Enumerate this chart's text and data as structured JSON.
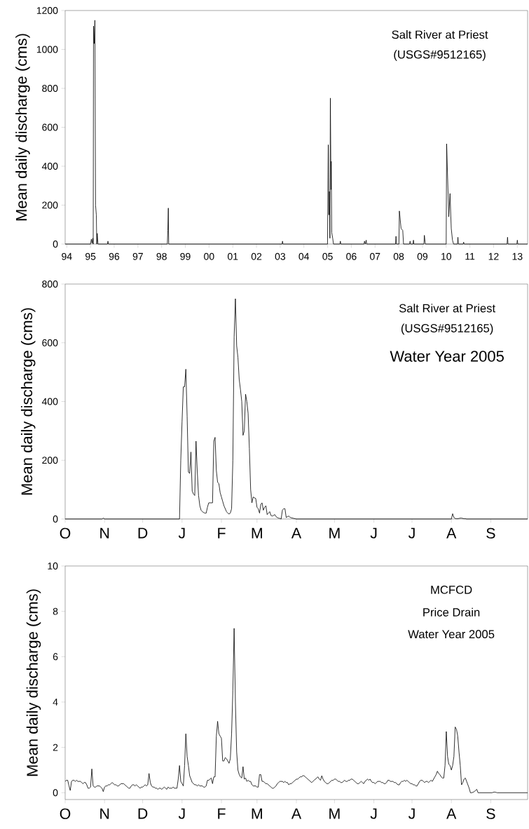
{
  "chart_data": [
    {
      "type": "line",
      "ylabel": "Mean daily discharge (cms)",
      "annotations": [
        "Salt River at Priest",
        "(USGS#9512165)"
      ],
      "color": "#000000",
      "x": [
        "1993-12-07",
        "1995-01-01",
        "1995-01-15",
        "1995-01-25",
        "1995-02-06",
        "1995-02-12",
        "1995-02-17",
        "1995-03-01",
        "1995-03-10",
        "1995-03-20",
        "1995-04-01",
        "1995-04-08",
        "1995-04-15",
        "1995-04-27",
        "1995-09-20",
        "1995-09-27",
        "1995-10-04",
        "1998-03-30",
        "1998-04-06",
        "1998-04-14",
        "1998-04-20",
        "2003-01-30",
        "2003-02-06",
        "2003-02-13",
        "2004-12-30",
        "2005-01-11",
        "2005-01-20",
        "2005-01-27",
        "2005-02-05",
        "2005-02-12",
        "2005-02-22",
        "2005-02-25",
        "2005-03-05",
        "2005-03-20",
        "2005-04-01",
        "2005-07-09",
        "2005-07-16",
        "2005-07-23",
        "2006-07-16",
        "2006-07-23",
        "2006-08-05",
        "2006-08-18",
        "2006-08-25",
        "2007-11-13",
        "2007-11-20",
        "2007-11-27",
        "2008-01-04",
        "2008-01-11",
        "2008-02-06",
        "2008-03-03",
        "2008-03-15",
        "2008-06-17",
        "2008-06-24",
        "2008-07-01",
        "2008-08-08",
        "2008-08-15",
        "2008-08-22",
        "2009-01-23",
        "2009-01-30",
        "2009-02-14",
        "2010-01-01",
        "2010-01-08",
        "2010-02-10",
        "2010-03-01",
        "2010-03-20",
        "2010-04-08",
        "2010-04-25",
        "2010-06-24",
        "2010-07-01",
        "2010-07-08",
        "2010-09-20",
        "2010-09-27",
        "2010-10-04",
        "2012-07-27",
        "2012-08-03",
        "2012-08-10",
        "2012-12-25",
        "2013-01-01",
        "2013-01-08",
        "2013-06-08"
      ],
      "values": [
        0,
        0,
        25,
        5,
        30,
        0,
        1120,
        1030,
        1150,
        200,
        150,
        0,
        55,
        0,
        0,
        15,
        0,
        0,
        70,
        185,
        0,
        0,
        15,
        0,
        0,
        510,
        150,
        270,
        30,
        750,
        280,
        425,
        60,
        30,
        0,
        0,
        15,
        0,
        0,
        15,
        0,
        20,
        0,
        0,
        40,
        0,
        0,
        170,
        80,
        70,
        0,
        0,
        15,
        0,
        0,
        20,
        0,
        0,
        45,
        0,
        0,
        515,
        140,
        260,
        80,
        20,
        0,
        0,
        35,
        0,
        0,
        10,
        0,
        0,
        35,
        0,
        0,
        20,
        0,
        0
      ],
      "xlim": [
        "1993-12-07",
        "2013-06-08"
      ],
      "ylim": [
        0,
        1200
      ],
      "yticks": [
        0,
        200,
        400,
        600,
        800,
        1000,
        1200
      ],
      "xticks": [
        {
          "value": "1994-01-01",
          "label": "94"
        },
        {
          "value": "1995-01-01",
          "label": "95"
        },
        {
          "value": "1996-01-01",
          "label": "96"
        },
        {
          "value": "1997-01-01",
          "label": "97"
        },
        {
          "value": "1998-01-01",
          "label": "98"
        },
        {
          "value": "1999-01-01",
          "label": "99"
        },
        {
          "value": "2000-01-01",
          "label": "00"
        },
        {
          "value": "2001-01-01",
          "label": "01"
        },
        {
          "value": "2002-01-01",
          "label": "02"
        },
        {
          "value": "2003-01-01",
          "label": "03"
        },
        {
          "value": "2004-01-01",
          "label": "04"
        },
        {
          "value": "2005-01-01",
          "label": "05"
        },
        {
          "value": "2006-01-01",
          "label": "06"
        },
        {
          "value": "2007-01-01",
          "label": "07"
        },
        {
          "value": "2008-01-01",
          "label": "08"
        },
        {
          "value": "2009-01-01",
          "label": "09"
        },
        {
          "value": "2010-01-01",
          "label": "10"
        },
        {
          "value": "2011-01-01",
          "label": "11"
        },
        {
          "value": "2012-01-01",
          "label": "12"
        },
        {
          "value": "2013-01-01",
          "label": "13"
        }
      ]
    },
    {
      "type": "line",
      "ylabel": "Mean daily discharge (cms)",
      "annotations": [
        "Salt River at Priest",
        "(USGS#9512165)",
        "Water Year 2005"
      ],
      "color": "#000000",
      "categories": [
        "O",
        null,
        null,
        null,
        null,
        null,
        null,
        null,
        null,
        null,
        null,
        null,
        null,
        null,
        null,
        null,
        null,
        null,
        null,
        null,
        null,
        null,
        null,
        null,
        null,
        null,
        null,
        null,
        null,
        null,
        null,
        "N",
        null,
        null,
        null,
        null,
        null,
        null,
        null,
        null,
        null,
        null,
        null,
        null,
        null,
        null,
        null,
        null,
        null,
        null,
        null,
        null,
        null,
        null,
        null,
        null,
        null,
        null,
        null,
        null,
        null,
        "D",
        null,
        null,
        null,
        null,
        null,
        null,
        null,
        null,
        null,
        null,
        null,
        null,
        null,
        null,
        null,
        null,
        null,
        null,
        null,
        null,
        null,
        null,
        null,
        null,
        null,
        null,
        null,
        null,
        null,
        null,
        "J",
        null,
        null,
        null,
        null,
        null,
        null,
        null,
        null,
        null,
        null,
        null,
        null,
        null,
        null,
        null,
        null,
        null,
        null,
        null,
        null,
        null,
        null,
        null,
        null,
        null,
        null,
        null,
        null,
        null,
        null,
        "F",
        null,
        null,
        null,
        null,
        null,
        null,
        null,
        null,
        null,
        null,
        null,
        null,
        null,
        null,
        null,
        null,
        null,
        null,
        null,
        null,
        null,
        null,
        null,
        null,
        null,
        null,
        null,
        "M",
        null,
        null,
        null,
        null,
        null,
        null,
        null,
        null,
        null,
        null,
        null,
        null,
        null,
        null,
        null,
        null,
        null,
        null,
        null,
        null,
        null,
        null,
        null,
        null,
        null,
        null,
        null,
        null,
        null,
        null,
        "A",
        null,
        null,
        null,
        null,
        null,
        null,
        null,
        null,
        null,
        null,
        null,
        null,
        null,
        null,
        null,
        null,
        null,
        null,
        null,
        null,
        null,
        null,
        null,
        null,
        null,
        null,
        null,
        null,
        null,
        "M",
        null,
        null,
        null,
        null,
        null,
        null,
        null,
        null,
        null,
        null,
        null,
        null,
        null,
        null,
        null,
        null,
        null,
        null,
        null,
        null,
        null,
        null,
        null,
        null,
        null,
        null,
        null,
        null,
        null,
        null,
        "J",
        null,
        null,
        null,
        null,
        null,
        null,
        null,
        null,
        null,
        null,
        null,
        null,
        null,
        null,
        null,
        null,
        null,
        null,
        null,
        null,
        null,
        null,
        null,
        null,
        null,
        null,
        null,
        null,
        null,
        "J",
        null,
        null,
        null,
        null,
        null,
        null,
        null,
        null,
        null,
        null,
        null,
        null,
        null,
        null,
        null,
        null,
        null,
        null,
        null,
        null,
        null,
        null,
        null,
        null,
        null,
        null,
        null,
        null,
        null,
        null,
        "A",
        null,
        null,
        null,
        null,
        null,
        null,
        null,
        null,
        null,
        null,
        null,
        null,
        null,
        null,
        null,
        null,
        null,
        null,
        null,
        null,
        null,
        null,
        null,
        null,
        null,
        null,
        null,
        null,
        null,
        null,
        "S",
        null,
        null,
        null,
        null,
        null,
        null,
        null,
        null,
        null,
        null,
        null,
        null,
        null,
        null,
        null,
        null,
        null,
        null,
        null,
        null,
        null,
        null,
        null,
        null,
        null,
        null,
        null,
        null,
        null
      ],
      "values": [
        0,
        0,
        0,
        0,
        0,
        0,
        0,
        0,
        0,
        0,
        0,
        0,
        0,
        0,
        0,
        0,
        0,
        0,
        0,
        0,
        0,
        0,
        0,
        0,
        0,
        0,
        0,
        0,
        0,
        0,
        3,
        0,
        0,
        0,
        0,
        0,
        0,
        0,
        0,
        0,
        0,
        0,
        0,
        0,
        0,
        0,
        0,
        0,
        0,
        0,
        0,
        0,
        0,
        0,
        0,
        0,
        0,
        0,
        0,
        0,
        0,
        0,
        0,
        0,
        0,
        0,
        0,
        0,
        0,
        0,
        0,
        0,
        0,
        0,
        0,
        0,
        0,
        0,
        0,
        0,
        0,
        0,
        0,
        0,
        0,
        0,
        0,
        0,
        0,
        0,
        0,
        200,
        330,
        450,
        450,
        510,
        350,
        160,
        155,
        228,
        95,
        85,
        80,
        265,
        160,
        80,
        45,
        30,
        25,
        22,
        20,
        20,
        40,
        55,
        55,
        55,
        55,
        265,
        278,
        165,
        125,
        120,
        90,
        75,
        60,
        45,
        35,
        25,
        20,
        17,
        20,
        35,
        200,
        620,
        750,
        590,
        550,
        475,
        440,
        400,
        285,
        300,
        425,
        400,
        360,
        240,
        100,
        55,
        75,
        72,
        70,
        40,
        35,
        20,
        50,
        55,
        30,
        40,
        45,
        15,
        20,
        25,
        12,
        10,
        12,
        15,
        8,
        5,
        3,
        2,
        0,
        30,
        35,
        35,
        5,
        8,
        10,
        6,
        4,
        3,
        2,
        1,
        0,
        0,
        0,
        0,
        0,
        0,
        0,
        0,
        0,
        0,
        0,
        0,
        0,
        0,
        0,
        0,
        0,
        0,
        0,
        0,
        0,
        0,
        0,
        0,
        0,
        0,
        0,
        0,
        0,
        0,
        0,
        0,
        0,
        0,
        0,
        0,
        0,
        0,
        0,
        0,
        0,
        0,
        0,
        0,
        0,
        0,
        0,
        0,
        0,
        0,
        0,
        0,
        0,
        0,
        0,
        0,
        0,
        0,
        0,
        0,
        0,
        0,
        0,
        0,
        0,
        0,
        0,
        0,
        0,
        0,
        0,
        0,
        0,
        0,
        0,
        0,
        0,
        0,
        0,
        0,
        0,
        0,
        0,
        0,
        0,
        0,
        0,
        0,
        0,
        0,
        0,
        0,
        0,
        0,
        0,
        0,
        0,
        0,
        0,
        0,
        0,
        0,
        0,
        0,
        0,
        0,
        0,
        0,
        0,
        0,
        0,
        0,
        0,
        0,
        0,
        0,
        0,
        0,
        0,
        0,
        0,
        0,
        0,
        18,
        5,
        2,
        1,
        1,
        2,
        3,
        3,
        2,
        1,
        1,
        0,
        0,
        0,
        0,
        0,
        0,
        0,
        0,
        0,
        0,
        0,
        0,
        0,
        0,
        0,
        0,
        0,
        0,
        0,
        0,
        0,
        0,
        0,
        0,
        0,
        0,
        0,
        0,
        0,
        0,
        0,
        0,
        0,
        0,
        0,
        0,
        0,
        0,
        0,
        0,
        0,
        0,
        0,
        0,
        0,
        0,
        0,
        0,
        0
      ],
      "ylim": [
        0,
        800
      ],
      "yticks": [
        0,
        200,
        400,
        600,
        800
      ]
    },
    {
      "type": "line",
      "ylabel": "Mean daily discharge (cms)",
      "annotations": [
        "MCFCD",
        "Price Drain",
        "Water Year 2005"
      ],
      "color": "#000000",
      "categories": [
        "O",
        null,
        null,
        null,
        null,
        null,
        null,
        null,
        null,
        null,
        null,
        null,
        null,
        null,
        null,
        null,
        null,
        null,
        null,
        null,
        null,
        null,
        null,
        null,
        null,
        null,
        null,
        null,
        null,
        null,
        null,
        "N",
        null,
        null,
        null,
        null,
        null,
        null,
        null,
        null,
        null,
        null,
        null,
        null,
        null,
        null,
        null,
        null,
        null,
        null,
        null,
        null,
        null,
        null,
        null,
        null,
        null,
        null,
        null,
        null,
        null,
        "D",
        null,
        null,
        null,
        null,
        null,
        null,
        null,
        null,
        null,
        null,
        null,
        null,
        null,
        null,
        null,
        null,
        null,
        null,
        null,
        null,
        null,
        null,
        null,
        null,
        null,
        null,
        null,
        null,
        null,
        null,
        "J",
        null,
        null,
        null,
        null,
        null,
        null,
        null,
        null,
        null,
        null,
        null,
        null,
        null,
        null,
        null,
        null,
        null,
        null,
        null,
        null,
        null,
        null,
        null,
        null,
        null,
        null,
        null,
        null,
        null,
        null,
        "F",
        null,
        null,
        null,
        null,
        null,
        null,
        null,
        null,
        null,
        null,
        null,
        null,
        null,
        null,
        null,
        null,
        null,
        null,
        null,
        null,
        null,
        null,
        null,
        null,
        null,
        null,
        null,
        "M",
        null,
        null,
        null,
        null,
        null,
        null,
        null,
        null,
        null,
        null,
        null,
        null,
        null,
        null,
        null,
        null,
        null,
        null,
        null,
        null,
        null,
        null,
        null,
        null,
        null,
        null,
        null,
        null,
        null,
        null,
        "A",
        null,
        null,
        null,
        null,
        null,
        null,
        null,
        null,
        null,
        null,
        null,
        null,
        null,
        null,
        null,
        null,
        null,
        null,
        null,
        null,
        null,
        null,
        null,
        null,
        null,
        null,
        null,
        null,
        null,
        "M",
        null,
        null,
        null,
        null,
        null,
        null,
        null,
        null,
        null,
        null,
        null,
        null,
        null,
        null,
        null,
        null,
        null,
        null,
        null,
        null,
        null,
        null,
        null,
        null,
        null,
        null,
        null,
        null,
        null,
        null,
        "J",
        null,
        null,
        null,
        null,
        null,
        null,
        null,
        null,
        null,
        null,
        null,
        null,
        null,
        null,
        null,
        null,
        null,
        null,
        null,
        null,
        null,
        null,
        null,
        null,
        null,
        null,
        null,
        null,
        null,
        "J",
        null,
        null,
        null,
        null,
        null,
        null,
        null,
        null,
        null,
        null,
        null,
        null,
        null,
        null,
        null,
        null,
        null,
        null,
        null,
        null,
        null,
        null,
        null,
        null,
        null,
        null,
        null,
        null,
        null,
        null,
        "A",
        null,
        null,
        null,
        null,
        null,
        null,
        null,
        null,
        null,
        null,
        null,
        null,
        null,
        null,
        null,
        null,
        null,
        null,
        null,
        null,
        null,
        null,
        null,
        null,
        null,
        null,
        null,
        null,
        null,
        null,
        "S",
        null,
        null,
        null,
        null,
        null,
        null,
        null,
        null,
        null,
        null,
        null,
        null,
        null,
        null,
        null,
        null,
        null,
        null,
        null,
        null,
        null,
        null,
        null,
        null,
        null,
        null,
        null,
        null,
        null
      ],
      "values": [
        0.5,
        0.55,
        0.55,
        0.3,
        0.1,
        0.5,
        0.55,
        0.55,
        0.5,
        0.55,
        0.5,
        0.5,
        0.5,
        0.45,
        0.4,
        0.45,
        0.45,
        0.35,
        0.2,
        0.2,
        0.25,
        1.05,
        0.3,
        0.25,
        0.25,
        0.3,
        0.3,
        0.3,
        0.25,
        0.2,
        0.05,
        0.25,
        0.3,
        0.3,
        0.35,
        0.35,
        0.4,
        0.45,
        0.4,
        0.35,
        0.35,
        0.3,
        0.3,
        0.35,
        0.4,
        0.4,
        0.4,
        0.35,
        0.3,
        0.25,
        0.2,
        0.2,
        0.3,
        0.35,
        0.35,
        0.3,
        0.35,
        0.3,
        0.25,
        0.2,
        0.25,
        0.25,
        0.3,
        0.35,
        0.3,
        0.35,
        0.85,
        0.45,
        0.3,
        0.25,
        0.25,
        0.2,
        0.2,
        0.15,
        0.2,
        0.2,
        0.15,
        0.2,
        0.25,
        0.2,
        0.15,
        0.25,
        0.2,
        0.2,
        0.2,
        0.25,
        0.2,
        0.2,
        0.2,
        0.6,
        1.2,
        0.5,
        0.4,
        0.3,
        1.2,
        2.6,
        1.6,
        1.2,
        0.75,
        0.6,
        0.45,
        0.4,
        0.35,
        0.35,
        0.3,
        0.35,
        0.3,
        0.3,
        0.3,
        0.25,
        0.25,
        0.3,
        0.55,
        0.55,
        0.6,
        0.65,
        0.4,
        0.7,
        0.7,
        2.5,
        3.15,
        2.6,
        2.5,
        2.4,
        1.4,
        1.4,
        1.55,
        1.5,
        1.4,
        1.3,
        1.5,
        2.6,
        4.5,
        7.25,
        4.0,
        1.8,
        1.0,
        0.8,
        0.7,
        0.65,
        1.15,
        0.6,
        0.65,
        0.5,
        0.55,
        0.5,
        0.5,
        0.35,
        0.3,
        0.3,
        0.3,
        0.25,
        0.25,
        0.8,
        0.8,
        0.5,
        0.5,
        0.45,
        0.4,
        0.4,
        0.35,
        0.3,
        0.25,
        0.2,
        0.2,
        0.25,
        0.3,
        0.4,
        0.45,
        0.5,
        0.5,
        0.5,
        0.45,
        0.5,
        0.45,
        0.45,
        0.35,
        0.4,
        0.4,
        0.45,
        0.5,
        0.55,
        0.6,
        0.6,
        0.65,
        0.7,
        0.7,
        0.75,
        0.75,
        0.7,
        0.65,
        0.6,
        0.55,
        0.5,
        0.45,
        0.5,
        0.55,
        0.6,
        0.65,
        0.7,
        0.6,
        0.55,
        0.75,
        0.6,
        0.5,
        0.45,
        0.4,
        0.4,
        0.45,
        0.5,
        0.55,
        0.55,
        0.6,
        0.6,
        0.55,
        0.5,
        0.5,
        0.45,
        0.45,
        0.5,
        0.55,
        0.5,
        0.5,
        0.55,
        0.55,
        0.6,
        0.6,
        0.55,
        0.5,
        0.45,
        0.4,
        0.4,
        0.45,
        0.5,
        0.45,
        0.4,
        0.5,
        0.55,
        0.6,
        0.55,
        0.6,
        0.5,
        0.45,
        0.45,
        0.4,
        0.45,
        0.5,
        0.5,
        0.5,
        0.45,
        0.45,
        0.4,
        0.4,
        0.45,
        0.55,
        0.55,
        0.5,
        0.5,
        0.5,
        0.45,
        0.45,
        0.4,
        0.35,
        0.35,
        0.45,
        0.5,
        0.5,
        0.55,
        0.5,
        0.55,
        0.5,
        0.45,
        0.4,
        0.4,
        0.35,
        0.35,
        0.3,
        0.3,
        0.4,
        0.5,
        0.55,
        0.55,
        0.5,
        0.45,
        0.5,
        0.5,
        0.45,
        0.5,
        0.55,
        0.5,
        0.6,
        0.7,
        0.8,
        0.95,
        0.85,
        0.8,
        0.7,
        0.65,
        0.65,
        1.2,
        2.7,
        1.6,
        1.25,
        1.2,
        1.0,
        1.2,
        1.6,
        2.9,
        2.8,
        2.5,
        1.8,
        1.2,
        0.35,
        0.45,
        0.6,
        0.65,
        0.5,
        0.35,
        0.2,
        0,
        0,
        0.02,
        0.05,
        0.1,
        0.15,
        0,
        0,
        0,
        0,
        0,
        0,
        0,
        0,
        0,
        0,
        0,
        0,
        0.02,
        0.03,
        0.02,
        0,
        0,
        0,
        0,
        0,
        0,
        0,
        0,
        0,
        0,
        0,
        0,
        0,
        0,
        0,
        0,
        0,
        0,
        0,
        0,
        0,
        0,
        0,
        0,
        0
      ],
      "ylim": [
        -0.3,
        10
      ],
      "yticks": [
        0,
        2,
        4,
        6,
        8,
        10
      ]
    }
  ]
}
